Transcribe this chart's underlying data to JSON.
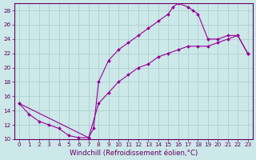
{
  "xlabel": "Windchill (Refroidissement éolien,°C)",
  "line_color": "#990099",
  "marker": "D",
  "marker_size": 2.0,
  "bg_color": "#cce8e8",
  "grid_color": "#aacccc",
  "axis_color": "#660066",
  "text_color": "#660066",
  "xlim": [
    -0.5,
    23.5
  ],
  "ylim": [
    10,
    29
  ],
  "xticks": [
    0,
    1,
    2,
    3,
    4,
    5,
    6,
    7,
    8,
    9,
    10,
    11,
    12,
    13,
    14,
    15,
    16,
    17,
    18,
    19,
    20,
    21,
    22,
    23
  ],
  "yticks": [
    10,
    12,
    14,
    16,
    18,
    20,
    22,
    24,
    26,
    28
  ],
  "tick_fontsize": 5.2,
  "xlabel_fontsize": 6.2,
  "line1_x": [
    0,
    1,
    2,
    3,
    4,
    5,
    6,
    7,
    8,
    9,
    10,
    11,
    12,
    13,
    14,
    15,
    16,
    17,
    18,
    19,
    20,
    21,
    22,
    23
  ],
  "line1_y": [
    15,
    13.5,
    12.5,
    12.0,
    11.5,
    10.5,
    10.2,
    10.2,
    15.0,
    16.5,
    18.0,
    19.0,
    20.0,
    20.5,
    21.5,
    22.0,
    22.5,
    23.0,
    23.0,
    23.0,
    23.5,
    24.0,
    24.5,
    22.0
  ],
  "line2_x": [
    0,
    7,
    7.5,
    8,
    9,
    10,
    11,
    12,
    13,
    14,
    15,
    15.5,
    16,
    17,
    17.5,
    18,
    19,
    20,
    21,
    22,
    23
  ],
  "line2_y": [
    15,
    10.2,
    11.5,
    18.0,
    21.0,
    22.5,
    23.5,
    24.5,
    25.5,
    26.5,
    27.5,
    28.5,
    29.0,
    28.5,
    28.0,
    27.5,
    24.0,
    24.0,
    24.5,
    24.5,
    22.0
  ]
}
